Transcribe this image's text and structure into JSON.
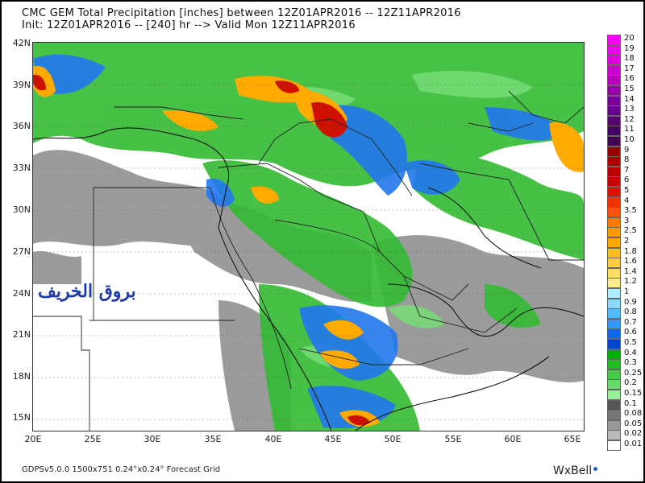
{
  "header": {
    "line1": "CMC GEM Total Precipitation [inches] between 12Z01APR2016 -- 12Z11APR2016",
    "line2": "Init: 12Z01APR2016 -- [240] hr --> Valid Mon 12Z11APR2016"
  },
  "lat_labels": [
    "42N",
    "39N",
    "36N",
    "33N",
    "30N",
    "27N",
    "24N",
    "21N",
    "18N",
    "15N"
  ],
  "lon_labels": [
    "20E",
    "25E",
    "30E",
    "35E",
    "40E",
    "45E",
    "50E",
    "55E",
    "60E",
    "65E"
  ],
  "legend": {
    "values": [
      "20",
      "19",
      "18",
      "17",
      "16",
      "15",
      "14",
      "13",
      "12",
      "11",
      "10",
      "9",
      "8",
      "7",
      "6",
      "5",
      "4",
      "3.5",
      "3",
      "2.5",
      "2",
      "1.8",
      "1.6",
      "1.4",
      "1.2",
      "1",
      "0.9",
      "0.8",
      "0.7",
      "0.6",
      "0.5",
      "0.4",
      "0.3",
      "0.25",
      "0.2",
      "0.15",
      "0.1",
      "0.08",
      "0.05",
      "0.02",
      "0.01"
    ],
    "colors": [
      "#ff00ff",
      "#ee00ee",
      "#dd00dd",
      "#cc00cc",
      "#bb00bb",
      "#9900aa",
      "#770099",
      "#660088",
      "#550077",
      "#440066",
      "#440055",
      "#990000",
      "#aa0000",
      "#bb0000",
      "#cc0000",
      "#dd1100",
      "#ee3300",
      "#ff5500",
      "#ff7700",
      "#ff9900",
      "#ffaa00",
      "#ffbb22",
      "#ffcc44",
      "#ffdd66",
      "#ffee88",
      "#aaeeff",
      "#88ddff",
      "#55bbff",
      "#3399ff",
      "#1166ee",
      "#0044cc",
      "#00aa00",
      "#22bb22",
      "#44cc44",
      "#66dd66",
      "#99ee99",
      "#555555",
      "#777777",
      "#999999",
      "#bbbbbb",
      "#ffffff"
    ]
  },
  "watermark": "بروق الخريف",
  "footer": "GDPSv5.0.0 1500x751 0.24°x0.24° Forecast Grid",
  "brand": "WxBell"
}
